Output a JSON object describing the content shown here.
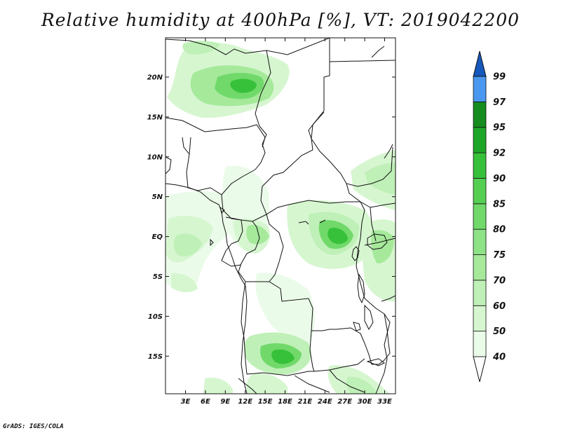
{
  "title": "Relative humidity at 400hPa [%], VT: 2019042200",
  "credit": "GrADS: IGES/COLA",
  "map": {
    "lat_ticks": [
      "20N",
      "15N",
      "10N",
      "5N",
      "EQ",
      "5S",
      "10S",
      "15S"
    ],
    "lon_ticks": [
      "3E",
      "6E",
      "9E",
      "12E",
      "15E",
      "18E",
      "21E",
      "24E",
      "27E",
      "30E",
      "33E"
    ]
  },
  "colorbar": {
    "levels": [
      "40",
      "50",
      "60",
      "70",
      "75",
      "80",
      "85",
      "90",
      "92",
      "95",
      "97",
      "99"
    ],
    "colors": [
      "#ebfbe9",
      "#d6f6d0",
      "#bff0b7",
      "#a6e99b",
      "#8ee286",
      "#70d96a",
      "#55cf52",
      "#37c13a",
      "#1ea628",
      "#168c1f",
      "#4a97ef",
      "#2a72db",
      "#1658bb"
    ]
  }
}
